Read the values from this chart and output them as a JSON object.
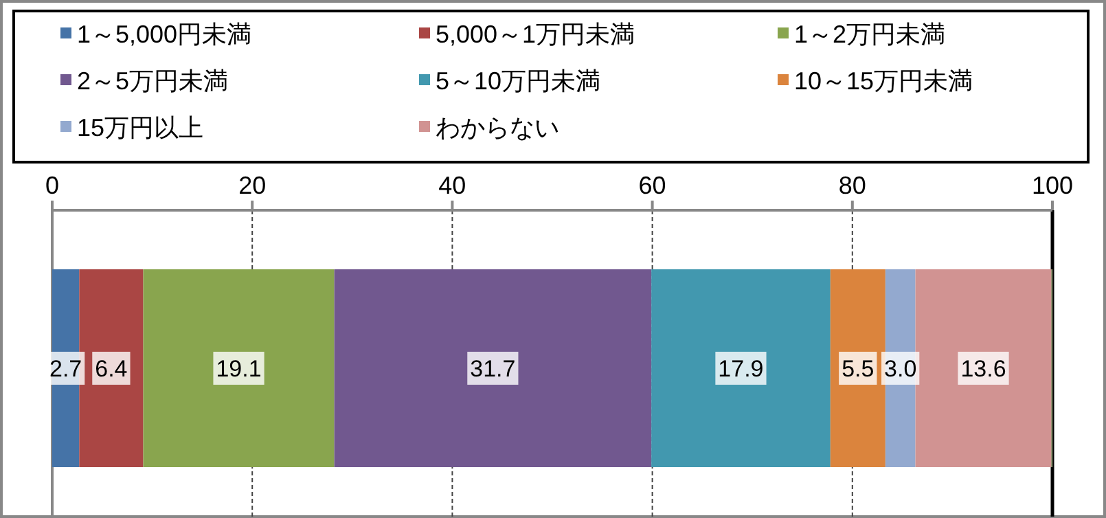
{
  "chart_data": {
    "type": "bar",
    "orientation": "horizontal",
    "stacked": true,
    "categories": [
      null
    ],
    "series": [
      {
        "name": "1～5,000円未満",
        "color": "#4573a7",
        "values": [
          2.7
        ],
        "value_labels": [
          "2.7"
        ]
      },
      {
        "name": "5,000～1万円未満",
        "color": "#aa4644",
        "values": [
          6.4
        ],
        "value_labels": [
          "6.4"
        ]
      },
      {
        "name": "1～2万円未満",
        "color": "#89a54e",
        "values": [
          19.1
        ],
        "value_labels": [
          "19.1"
        ]
      },
      {
        "name": "2～5万円未満",
        "color": "#71588f",
        "values": [
          31.7
        ],
        "value_labels": [
          "31.7"
        ]
      },
      {
        "name": "5～10万円未満",
        "color": "#4298af",
        "values": [
          17.9
        ],
        "value_labels": [
          "17.9"
        ]
      },
      {
        "name": "10～15万円未満",
        "color": "#db843d",
        "values": [
          5.5
        ],
        "value_labels": [
          "5.5"
        ]
      },
      {
        "name": "15万円以上",
        "color": "#93a9cf",
        "values": [
          3.0
        ],
        "value_labels": [
          "3.0"
        ]
      },
      {
        "name": "わからない",
        "color": "#d19392",
        "values": [
          13.6
        ],
        "value_labels": [
          "13.6"
        ]
      },
      {
        "color": "#b9cd96",
        "values": [
          0.1
        ],
        "value_labels": [
          null
        ]
      }
    ],
    "xlim": [
      0,
      100
    ],
    "xticks": [
      0,
      20,
      40,
      60,
      80,
      100
    ],
    "grid": "x",
    "legend": "top"
  }
}
